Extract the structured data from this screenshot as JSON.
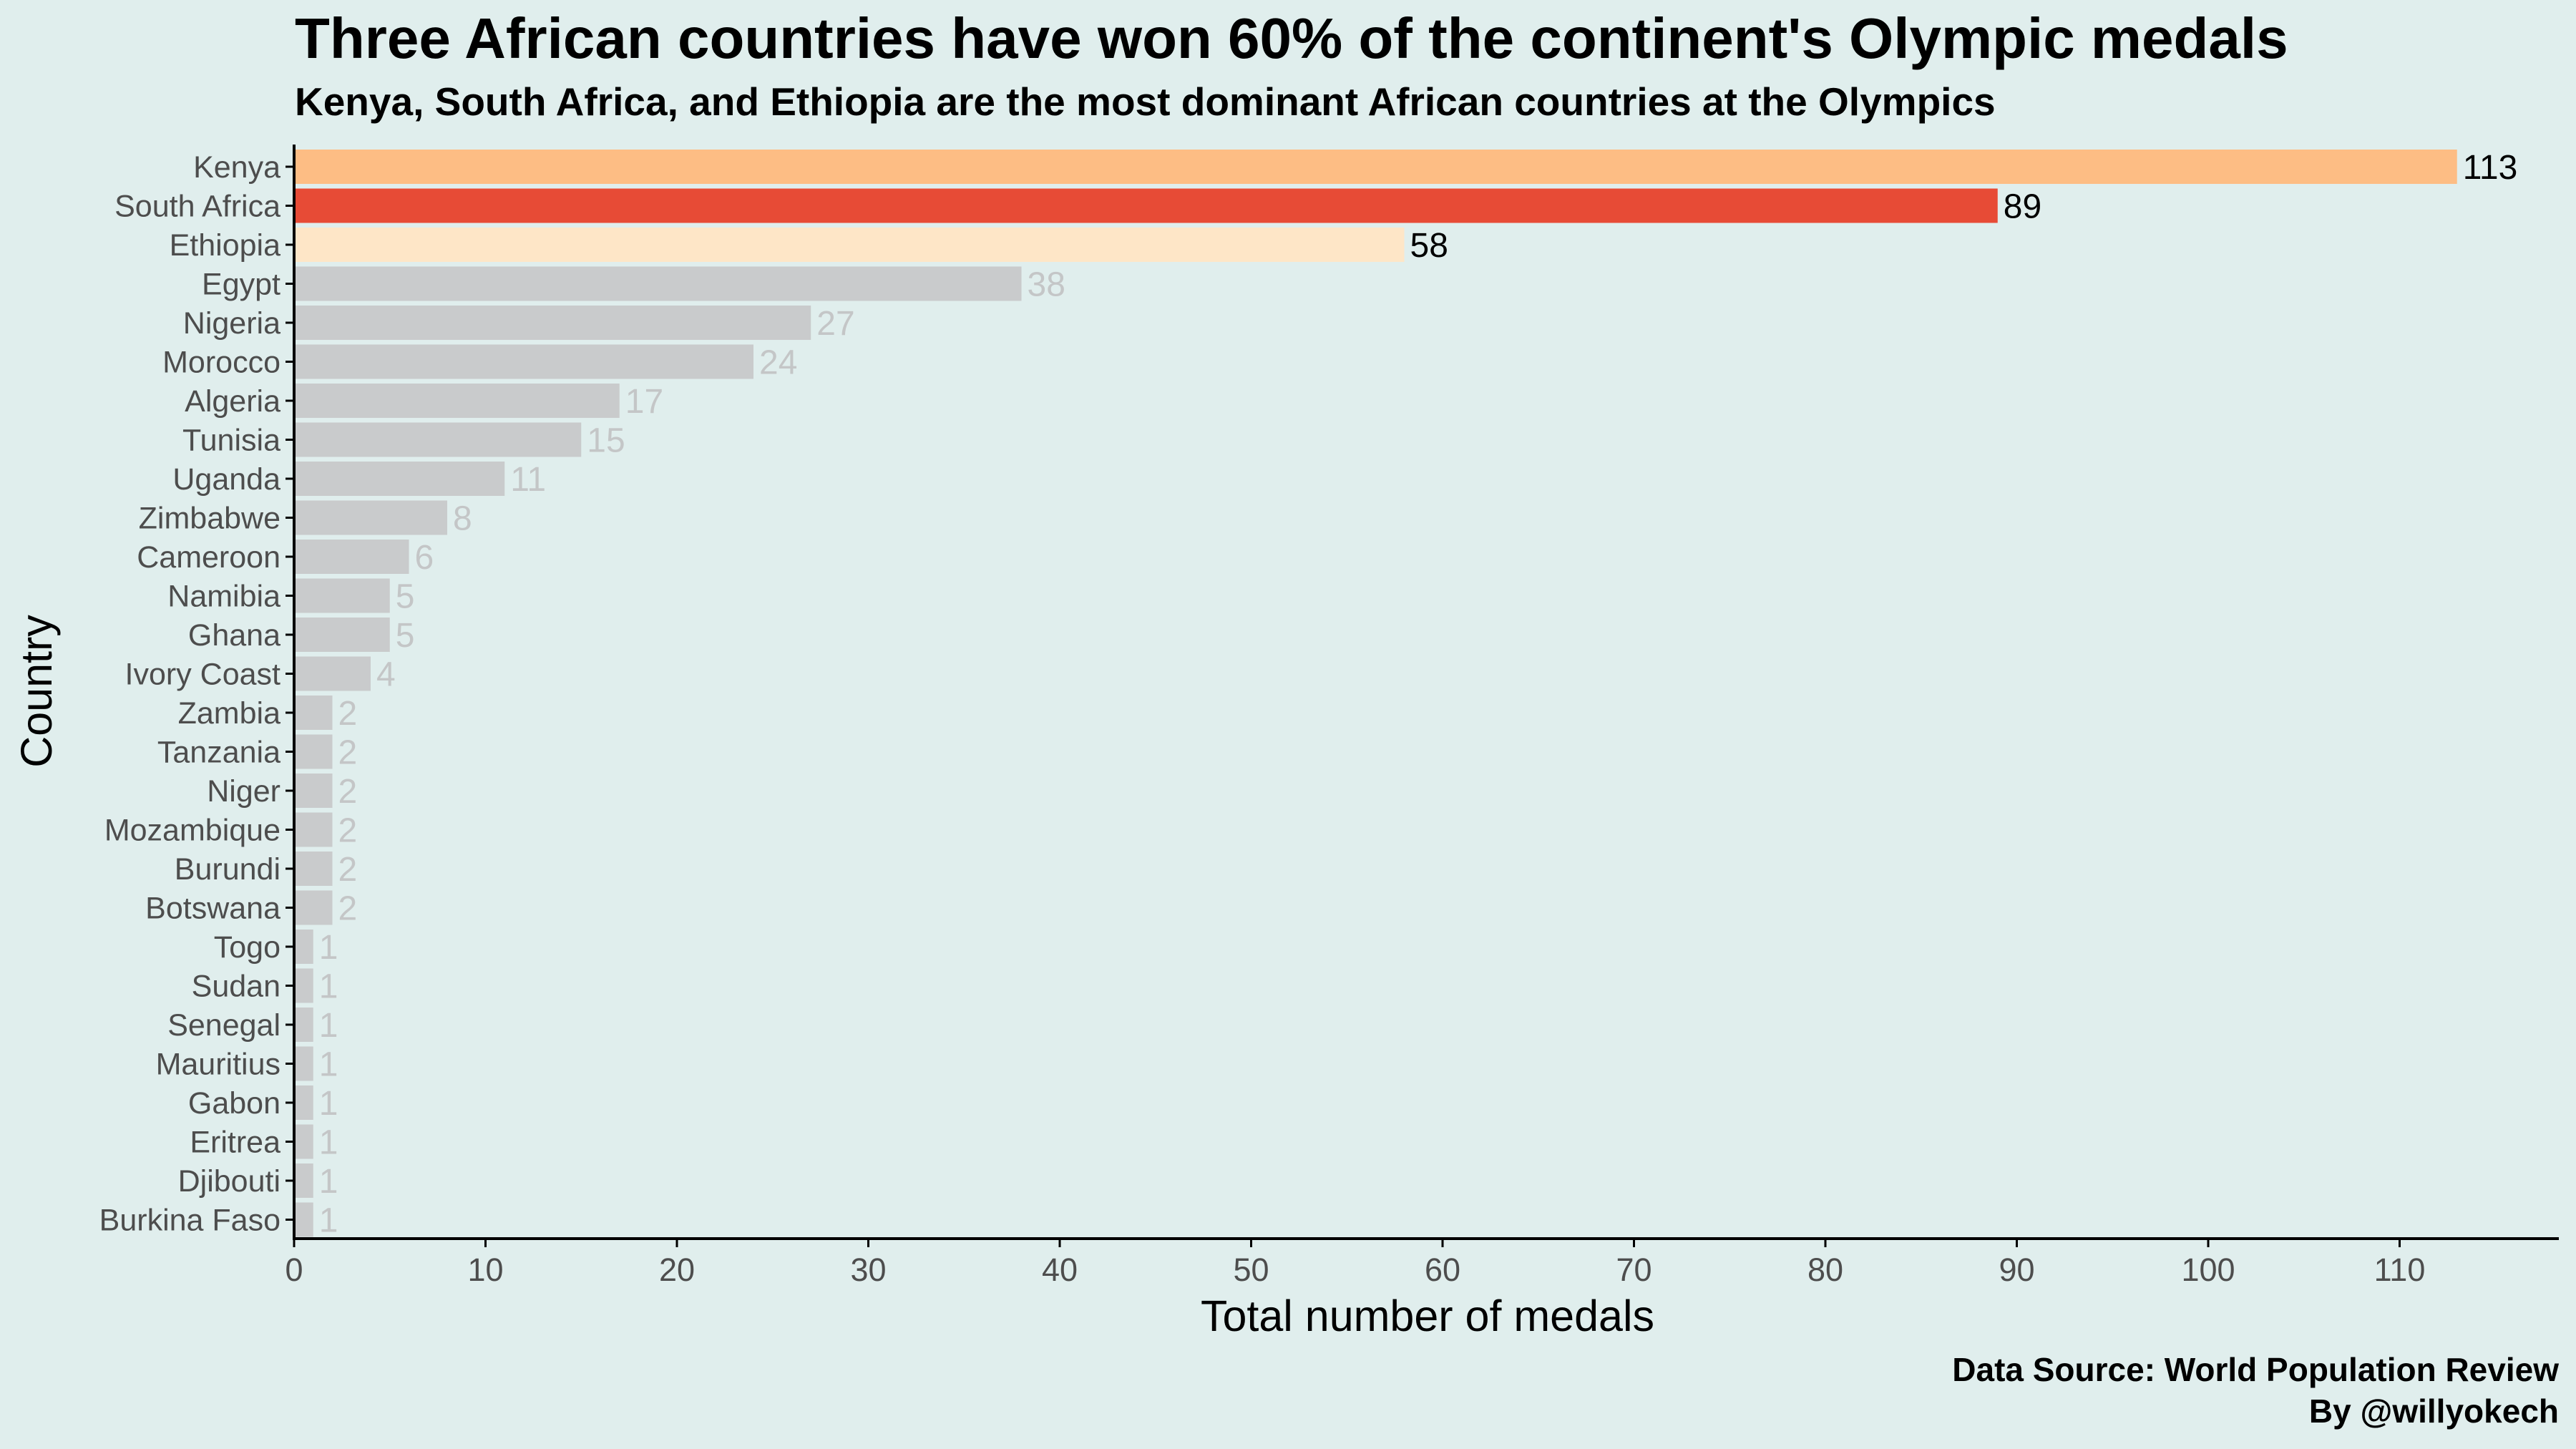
{
  "title": "Three African countries have won 60% of the continent's Olympic medals",
  "subtitle": "Kenya, South Africa, and Ethiopia are the most dominant African countries at the Olympics",
  "caption": {
    "source": "Data Source: World Population Review",
    "author": "By @willyokech"
  },
  "colors": {
    "background": "#e0eeed",
    "first": "#fdbd84",
    "second": "#e74b36",
    "third": "#fee6c7",
    "other": "#c9cbcc",
    "other_label": "#c4c6c7",
    "highlight_label": "#000000",
    "axis": "#000000",
    "tick_label": "#4d4d4d"
  },
  "chart_data": {
    "type": "bar",
    "orientation": "horizontal",
    "xlabel": "Total number of medals",
    "ylabel": "Country",
    "xlim": [
      0,
      118
    ],
    "xticks": [
      0,
      10,
      20,
      30,
      40,
      50,
      60,
      70,
      80,
      90,
      100,
      110
    ],
    "grid": false,
    "categories": [
      "Kenya",
      "South Africa",
      "Ethiopia",
      "Egypt",
      "Nigeria",
      "Morocco",
      "Algeria",
      "Tunisia",
      "Uganda",
      "Zimbabwe",
      "Cameroon",
      "Namibia",
      "Ghana",
      "Ivory Coast",
      "Zambia",
      "Tanzania",
      "Niger",
      "Mozambique",
      "Burundi",
      "Botswana",
      "Togo",
      "Sudan",
      "Senegal",
      "Mauritius",
      "Gabon",
      "Eritrea",
      "Djibouti",
      "Burkina Faso"
    ],
    "values": [
      113,
      89,
      58,
      38,
      27,
      24,
      17,
      15,
      11,
      8,
      6,
      5,
      5,
      4,
      2,
      2,
      2,
      2,
      2,
      2,
      1,
      1,
      1,
      1,
      1,
      1,
      1,
      1
    ]
  }
}
